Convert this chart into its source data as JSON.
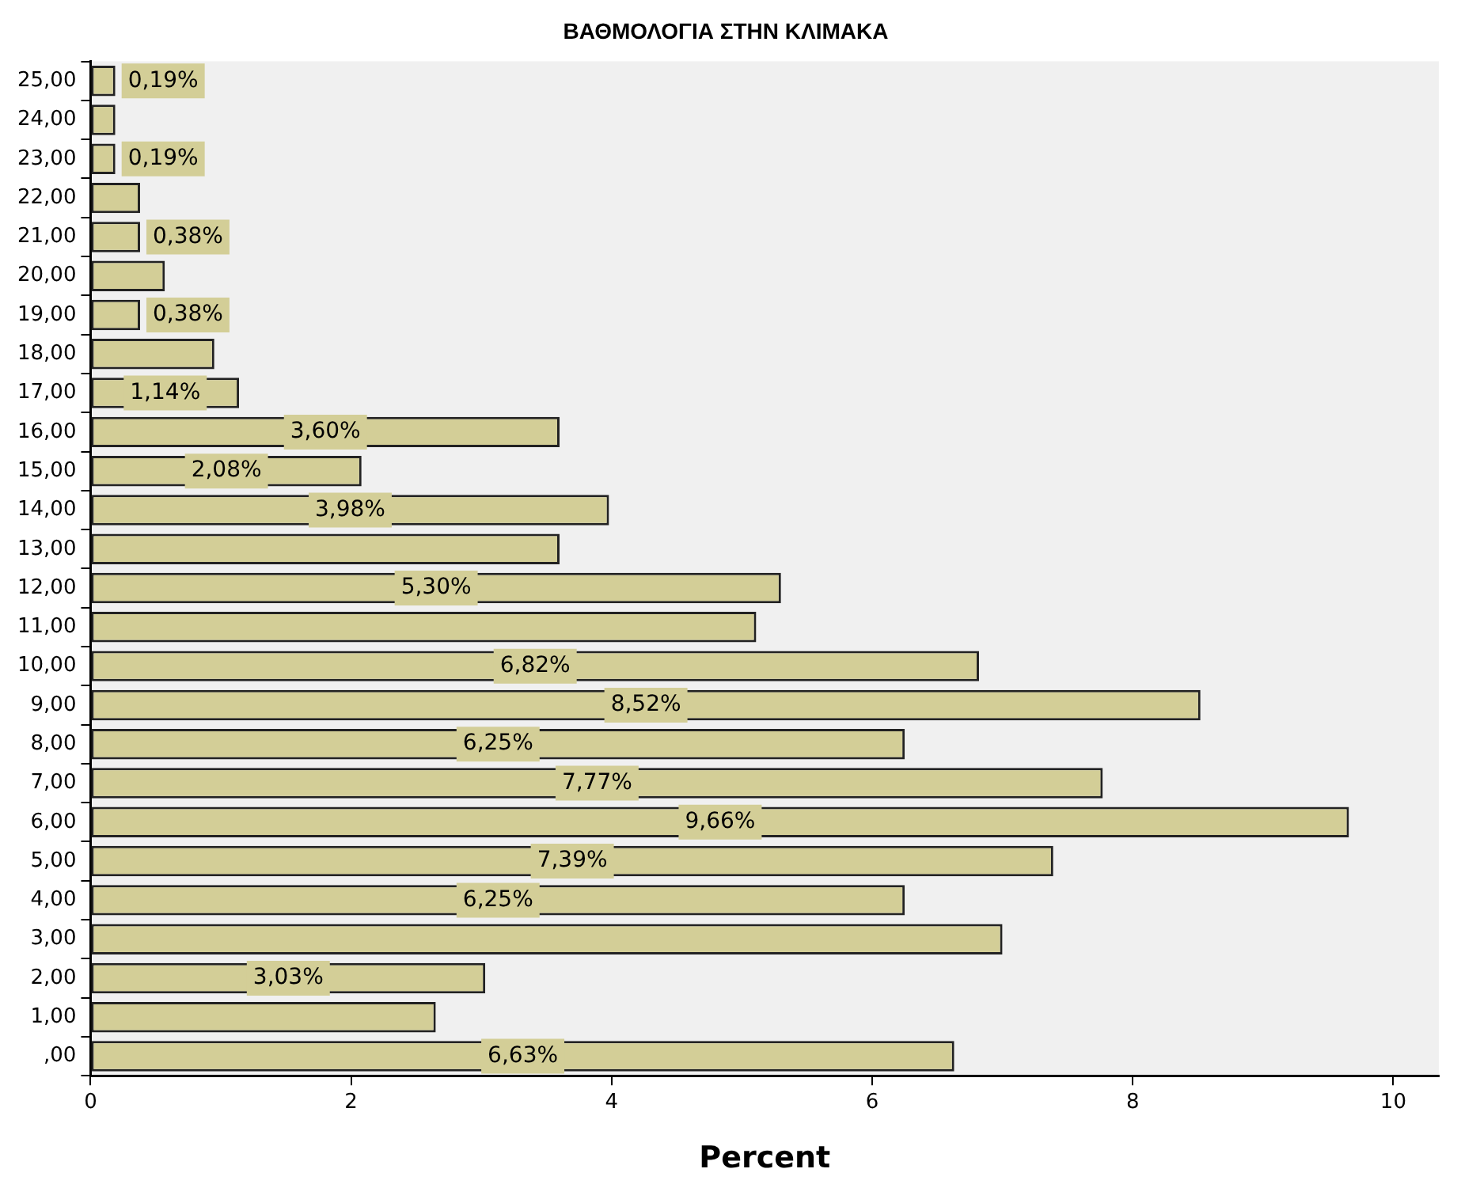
{
  "chart_data": {
    "type": "bar",
    "orientation": "horizontal",
    "title": "ΒΑΘΜΟΛΟΓΙΑ ΣΤΗΝ ΚΛΙΜΑΚΑ",
    "xlabel": "Percent",
    "categories": [
      "25,00",
      "24,00",
      "23,00",
      "22,00",
      "21,00",
      "20,00",
      "19,00",
      "18,00",
      "17,00",
      "16,00",
      "15,00",
      "14,00",
      "13,00",
      "12,00",
      "11,00",
      "10,00",
      "9,00",
      "8,00",
      "7,00",
      "6,00",
      "5,00",
      "4,00",
      "3,00",
      "2,00",
      "1,00",
      ",00"
    ],
    "values": [
      0.19,
      0.19,
      0.19,
      0.38,
      0.38,
      0.57,
      0.38,
      0.95,
      1.14,
      3.6,
      2.08,
      3.98,
      3.6,
      5.3,
      5.11,
      6.82,
      8.52,
      6.25,
      7.77,
      9.66,
      7.39,
      6.25,
      7.0,
      3.03,
      2.65,
      6.63
    ],
    "value_labels": [
      "0,19%",
      null,
      "0,19%",
      null,
      "0,38%",
      null,
      "0,38%",
      null,
      "1,14%",
      "3,60%",
      "2,08%",
      "3,98%",
      null,
      "5,30%",
      null,
      "6,82%",
      "8,52%",
      "6,25%",
      "7,77%",
      "9,66%",
      "7,39%",
      "6,25%",
      null,
      "3,03%",
      null,
      "6,63%"
    ],
    "color": "#d3ce97",
    "xlim": [
      0,
      10.35
    ],
    "xticks": [
      0,
      2,
      4,
      6,
      8,
      10
    ],
    "grid": false,
    "legend": false
  }
}
